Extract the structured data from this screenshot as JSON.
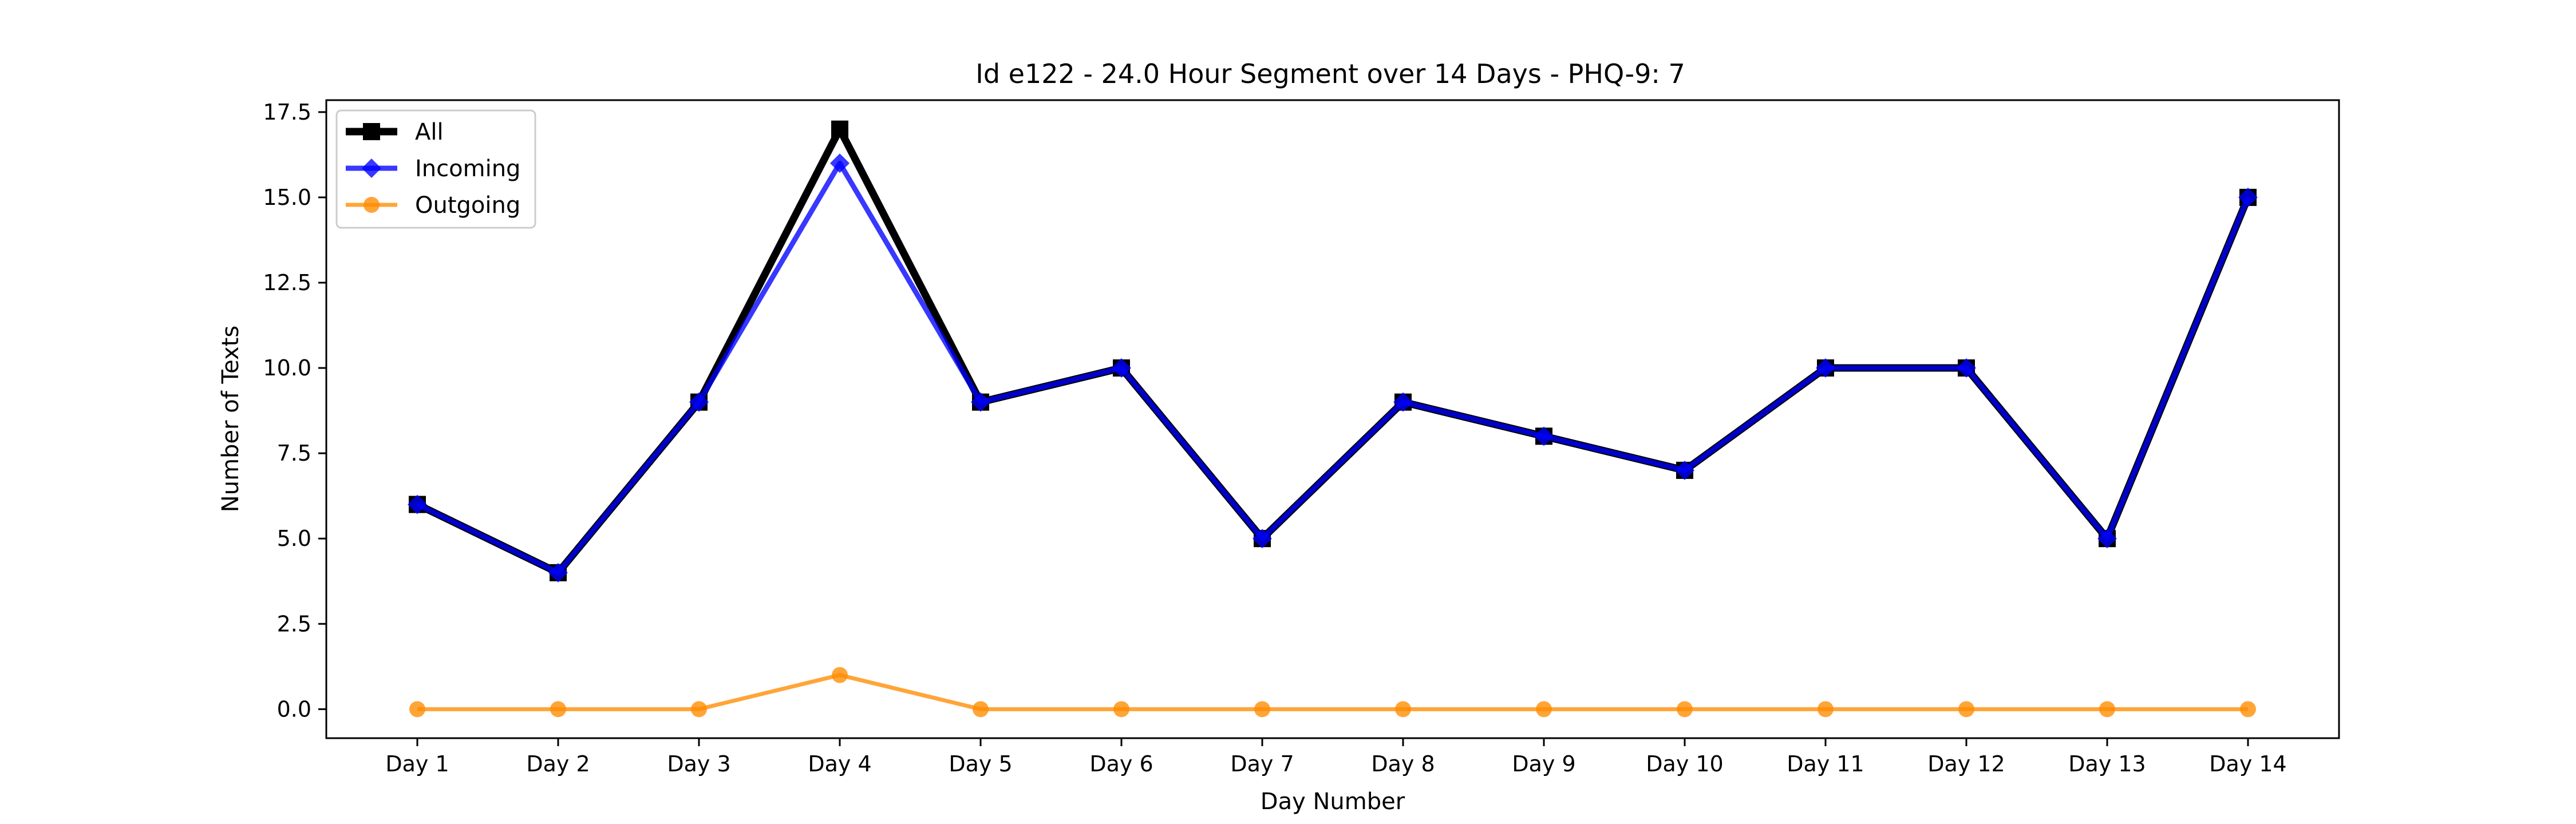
{
  "chart_data": {
    "type": "line",
    "title": "Id e122 - 24.0 Hour Segment over 14 Days - PHQ-9: 7",
    "xlabel": "Day Number",
    "ylabel": "Number of Texts",
    "categories": [
      "Day 1",
      "Day 2",
      "Day 3",
      "Day 4",
      "Day 5",
      "Day 6",
      "Day 7",
      "Day 8",
      "Day 9",
      "Day 10",
      "Day 11",
      "Day 12",
      "Day 13",
      "Day 14"
    ],
    "ylim": [
      -0.85,
      17.85
    ],
    "yticks": [
      "0.0",
      "2.5",
      "5.0",
      "7.5",
      "10.0",
      "12.5",
      "15.0",
      "17.5"
    ],
    "grid": false,
    "legend_position": "top-left",
    "series": [
      {
        "name": "All",
        "color": "#000000",
        "marker": "square",
        "values": [
          6,
          4,
          9,
          17,
          9,
          10,
          5,
          9,
          8,
          7,
          10,
          10,
          5,
          15
        ]
      },
      {
        "name": "Incoming",
        "color": "#0000ff",
        "marker": "diamond",
        "values": [
          6,
          4,
          9,
          16,
          9,
          10,
          5,
          9,
          8,
          7,
          10,
          10,
          5,
          15
        ]
      },
      {
        "name": "Outgoing",
        "color": "#ff8c00",
        "marker": "circle",
        "values": [
          0,
          0,
          0,
          1,
          0,
          0,
          0,
          0,
          0,
          0,
          0,
          0,
          0,
          0
        ]
      }
    ]
  }
}
